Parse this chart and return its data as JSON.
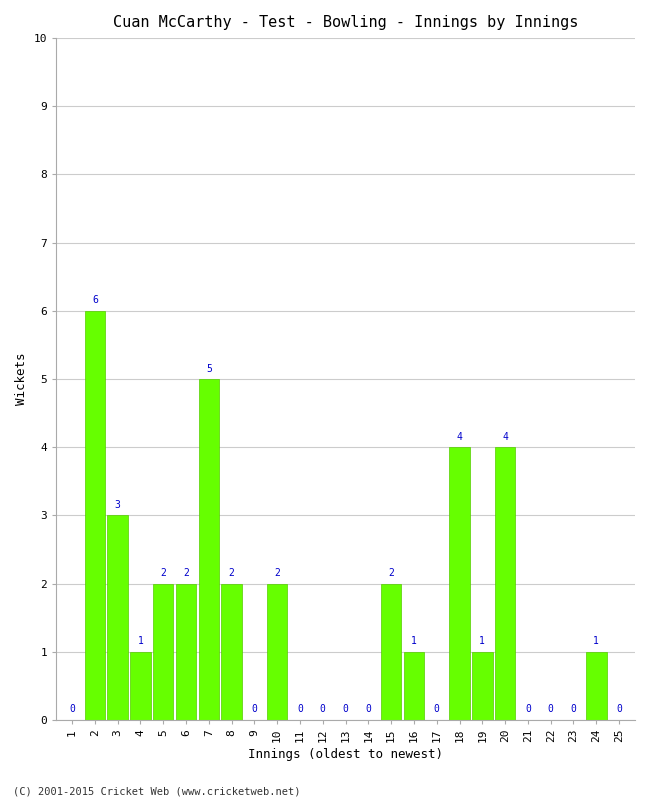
{
  "title": "Cuan McCarthy - Test - Bowling - Innings by Innings",
  "xlabel": "Innings (oldest to newest)",
  "ylabel": "Wickets",
  "innings": [
    1,
    2,
    3,
    4,
    5,
    6,
    7,
    8,
    9,
    10,
    11,
    12,
    13,
    14,
    15,
    16,
    17,
    18,
    19,
    20,
    21,
    22,
    23,
    24,
    25
  ],
  "wickets": [
    0,
    6,
    3,
    1,
    2,
    2,
    5,
    2,
    0,
    2,
    0,
    0,
    0,
    0,
    2,
    1,
    0,
    4,
    1,
    4,
    0,
    0,
    0,
    1,
    0
  ],
  "bar_color": "#66ff00",
  "bar_edge_color": "#55cc00",
  "label_color": "#0000cc",
  "title_fontsize": 11,
  "axis_label_fontsize": 9,
  "tick_fontsize": 8,
  "label_fontsize": 7,
  "ylim": [
    0,
    10
  ],
  "background_color": "#ffffff",
  "grid_color": "#cccccc",
  "footer": "(C) 2001-2015 Cricket Web (www.cricketweb.net)"
}
